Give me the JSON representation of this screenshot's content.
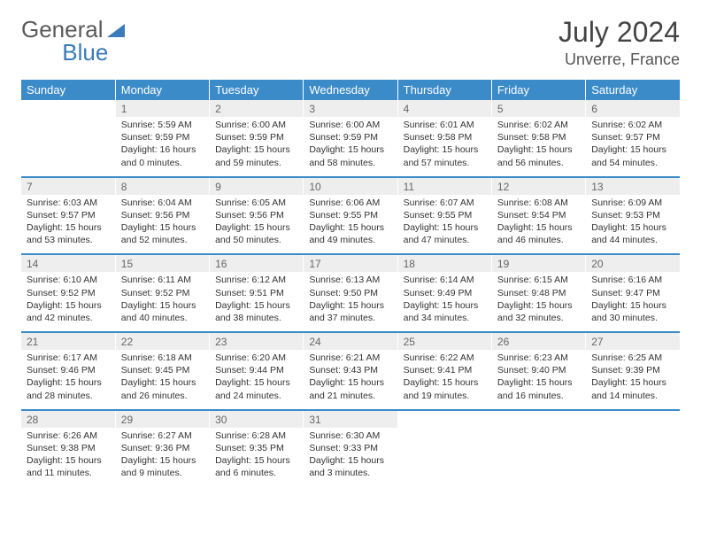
{
  "brand": {
    "part1": "General",
    "part2": "Blue"
  },
  "title": "July 2024",
  "location": "Unverre, France",
  "colors": {
    "header_bg": "#3b8bc9",
    "header_fg": "#ffffff",
    "daynum_bg": "#eeeeee",
    "daynum_fg": "#666666",
    "row_divider": "#3b8bc9",
    "body_text": "#333333",
    "title_color": "#444444",
    "brand_gray": "#5a5a5a",
    "brand_blue": "#3a7ab8"
  },
  "day_names": [
    "Sunday",
    "Monday",
    "Tuesday",
    "Wednesday",
    "Thursday",
    "Friday",
    "Saturday"
  ],
  "weeks": [
    [
      null,
      {
        "n": "1",
        "sunrise": "5:59 AM",
        "sunset": "9:59 PM",
        "daylight": "16 hours and 0 minutes."
      },
      {
        "n": "2",
        "sunrise": "6:00 AM",
        "sunset": "9:59 PM",
        "daylight": "15 hours and 59 minutes."
      },
      {
        "n": "3",
        "sunrise": "6:00 AM",
        "sunset": "9:59 PM",
        "daylight": "15 hours and 58 minutes."
      },
      {
        "n": "4",
        "sunrise": "6:01 AM",
        "sunset": "9:58 PM",
        "daylight": "15 hours and 57 minutes."
      },
      {
        "n": "5",
        "sunrise": "6:02 AM",
        "sunset": "9:58 PM",
        "daylight": "15 hours and 56 minutes."
      },
      {
        "n": "6",
        "sunrise": "6:02 AM",
        "sunset": "9:57 PM",
        "daylight": "15 hours and 54 minutes."
      }
    ],
    [
      {
        "n": "7",
        "sunrise": "6:03 AM",
        "sunset": "9:57 PM",
        "daylight": "15 hours and 53 minutes."
      },
      {
        "n": "8",
        "sunrise": "6:04 AM",
        "sunset": "9:56 PM",
        "daylight": "15 hours and 52 minutes."
      },
      {
        "n": "9",
        "sunrise": "6:05 AM",
        "sunset": "9:56 PM",
        "daylight": "15 hours and 50 minutes."
      },
      {
        "n": "10",
        "sunrise": "6:06 AM",
        "sunset": "9:55 PM",
        "daylight": "15 hours and 49 minutes."
      },
      {
        "n": "11",
        "sunrise": "6:07 AM",
        "sunset": "9:55 PM",
        "daylight": "15 hours and 47 minutes."
      },
      {
        "n": "12",
        "sunrise": "6:08 AM",
        "sunset": "9:54 PM",
        "daylight": "15 hours and 46 minutes."
      },
      {
        "n": "13",
        "sunrise": "6:09 AM",
        "sunset": "9:53 PM",
        "daylight": "15 hours and 44 minutes."
      }
    ],
    [
      {
        "n": "14",
        "sunrise": "6:10 AM",
        "sunset": "9:52 PM",
        "daylight": "15 hours and 42 minutes."
      },
      {
        "n": "15",
        "sunrise": "6:11 AM",
        "sunset": "9:52 PM",
        "daylight": "15 hours and 40 minutes."
      },
      {
        "n": "16",
        "sunrise": "6:12 AM",
        "sunset": "9:51 PM",
        "daylight": "15 hours and 38 minutes."
      },
      {
        "n": "17",
        "sunrise": "6:13 AM",
        "sunset": "9:50 PM",
        "daylight": "15 hours and 37 minutes."
      },
      {
        "n": "18",
        "sunrise": "6:14 AM",
        "sunset": "9:49 PM",
        "daylight": "15 hours and 34 minutes."
      },
      {
        "n": "19",
        "sunrise": "6:15 AM",
        "sunset": "9:48 PM",
        "daylight": "15 hours and 32 minutes."
      },
      {
        "n": "20",
        "sunrise": "6:16 AM",
        "sunset": "9:47 PM",
        "daylight": "15 hours and 30 minutes."
      }
    ],
    [
      {
        "n": "21",
        "sunrise": "6:17 AM",
        "sunset": "9:46 PM",
        "daylight": "15 hours and 28 minutes."
      },
      {
        "n": "22",
        "sunrise": "6:18 AM",
        "sunset": "9:45 PM",
        "daylight": "15 hours and 26 minutes."
      },
      {
        "n": "23",
        "sunrise": "6:20 AM",
        "sunset": "9:44 PM",
        "daylight": "15 hours and 24 minutes."
      },
      {
        "n": "24",
        "sunrise": "6:21 AM",
        "sunset": "9:43 PM",
        "daylight": "15 hours and 21 minutes."
      },
      {
        "n": "25",
        "sunrise": "6:22 AM",
        "sunset": "9:41 PM",
        "daylight": "15 hours and 19 minutes."
      },
      {
        "n": "26",
        "sunrise": "6:23 AM",
        "sunset": "9:40 PM",
        "daylight": "15 hours and 16 minutes."
      },
      {
        "n": "27",
        "sunrise": "6:25 AM",
        "sunset": "9:39 PM",
        "daylight": "15 hours and 14 minutes."
      }
    ],
    [
      {
        "n": "28",
        "sunrise": "6:26 AM",
        "sunset": "9:38 PM",
        "daylight": "15 hours and 11 minutes."
      },
      {
        "n": "29",
        "sunrise": "6:27 AM",
        "sunset": "9:36 PM",
        "daylight": "15 hours and 9 minutes."
      },
      {
        "n": "30",
        "sunrise": "6:28 AM",
        "sunset": "9:35 PM",
        "daylight": "15 hours and 6 minutes."
      },
      {
        "n": "31",
        "sunrise": "6:30 AM",
        "sunset": "9:33 PM",
        "daylight": "15 hours and 3 minutes."
      },
      null,
      null,
      null
    ]
  ],
  "labels": {
    "sunrise": "Sunrise:",
    "sunset": "Sunset:",
    "daylight": "Daylight:"
  }
}
